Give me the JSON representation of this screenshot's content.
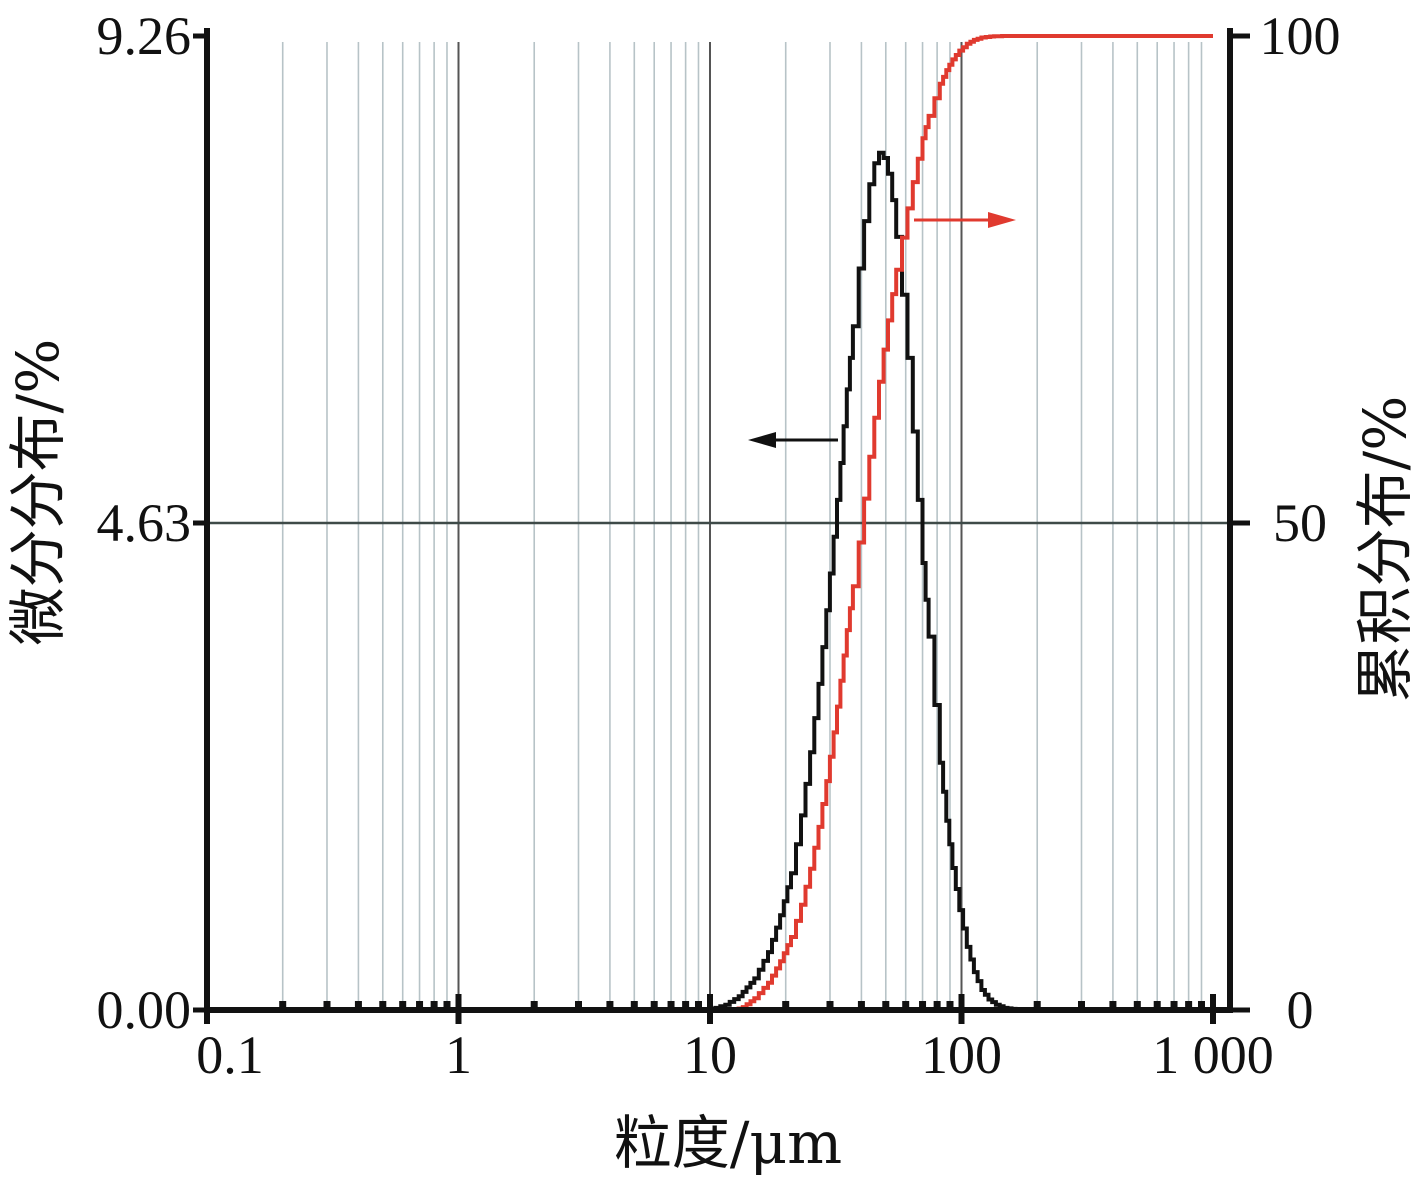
{
  "chart_data": {
    "type": "line",
    "title": "",
    "xlabel": "粒度/μm",
    "ylabel_left": "微分分布/%",
    "ylabel_right": "累积分布/%",
    "x_scale": "log",
    "xlim": [
      0.1,
      1000
    ],
    "ylim_left": [
      0,
      9.26
    ],
    "ylim_right": [
      0,
      100
    ],
    "x_ticks": [
      {
        "value": 0.1,
        "label": "0.1"
      },
      {
        "value": 1,
        "label": "1"
      },
      {
        "value": 10,
        "label": "10"
      },
      {
        "value": 100,
        "label": "100"
      },
      {
        "value": 1000,
        "label": "1 000"
      }
    ],
    "y_ticks_left": [
      {
        "value": 0,
        "label": "0.00"
      },
      {
        "value": 4.63,
        "label": "4.63"
      },
      {
        "value": 9.26,
        "label": "9.26"
      }
    ],
    "y_ticks_right": [
      {
        "value": 0,
        "label": "0"
      },
      {
        "value": 50,
        "label": "50"
      },
      {
        "value": 100,
        "label": "100"
      }
    ],
    "grid": {
      "vertical_minor": true,
      "horizontal": [
        4.63
      ]
    },
    "series": [
      {
        "axis": "left",
        "color": "#111111",
        "arrow": "left",
        "x": [
          0.1,
          10,
          10.5,
          11.5,
          13,
          15,
          17,
          19,
          21,
          23,
          25,
          27,
          29,
          31,
          33,
          35,
          37,
          39,
          41,
          43,
          45,
          47,
          49,
          51,
          53,
          55,
          58,
          61,
          64,
          67,
          70,
          74,
          78,
          82,
          87,
          92,
          98,
          105,
          112,
          120,
          128,
          137,
          147,
          158,
          170,
          1000
        ],
        "values": [
          0,
          0,
          0.02,
          0.05,
          0.13,
          0.3,
          0.55,
          0.9,
          1.3,
          1.85,
          2.45,
          3.1,
          3.8,
          4.5,
          5.2,
          5.9,
          6.5,
          7.05,
          7.5,
          7.85,
          8.05,
          8.15,
          8.1,
          7.95,
          7.7,
          7.35,
          6.8,
          6.2,
          5.5,
          4.85,
          4.25,
          3.55,
          2.9,
          2.35,
          1.8,
          1.35,
          0.95,
          0.6,
          0.36,
          0.19,
          0.1,
          0.05,
          0.02,
          0.01,
          0,
          0
        ]
      },
      {
        "axis": "right",
        "color": "#e03a2f",
        "arrow": "right",
        "x": [
          0.1,
          12.5,
          13.5,
          15,
          17,
          19,
          21,
          23,
          25,
          27,
          29,
          31,
          33,
          35,
          37,
          39,
          41,
          43,
          45,
          47,
          49,
          51,
          53,
          55,
          58,
          61,
          64,
          67,
          70,
          74,
          78,
          82,
          87,
          92,
          98,
          105,
          112,
          120,
          130,
          145,
          1000
        ],
        "values": [
          0,
          0,
          0.3,
          1.2,
          2.8,
          5,
          7.5,
          10.8,
          14.5,
          18.8,
          23.5,
          28.5,
          33.8,
          39,
          43.5,
          48,
          52.5,
          56.8,
          60.8,
          64.5,
          67.8,
          70.8,
          73.5,
          76,
          79.3,
          82.3,
          85,
          87.4,
          89.5,
          91.8,
          93.6,
          95.1,
          96.5,
          97.6,
          98.5,
          99.2,
          99.6,
          99.85,
          99.95,
          100,
          100
        ]
      }
    ]
  }
}
